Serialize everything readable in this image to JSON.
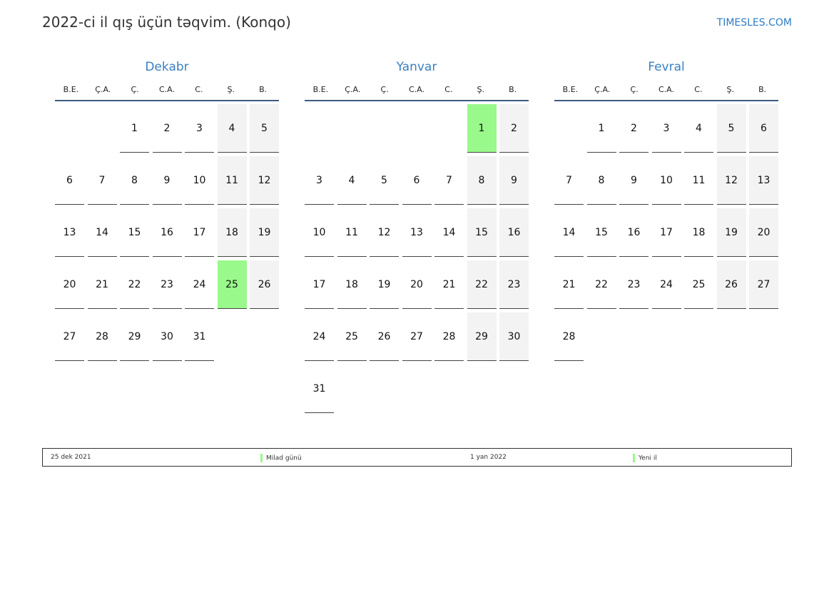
{
  "header": {
    "title": "2022-ci il qış üçün təqvim. (Konqo)",
    "brand": "TIMESLES.COM"
  },
  "weekdays": [
    "B.E.",
    "Ç.A.",
    "Ç.",
    "C.A.",
    "C.",
    "Ş.",
    "B."
  ],
  "colors": {
    "holiday": "#99f98a",
    "weekend": "#f3f3f3",
    "month_title": "#3a7fc0"
  },
  "months": [
    {
      "name": "Dekabr",
      "start_weekday": 2,
      "days": 31,
      "holidays": [
        25
      ]
    },
    {
      "name": "Yanvar",
      "start_weekday": 5,
      "days": 31,
      "holidays": [
        1
      ]
    },
    {
      "name": "Fevral",
      "start_weekday": 1,
      "days": 28,
      "holidays": []
    }
  ],
  "legend": [
    {
      "date": "25 dek 2021",
      "name": "Milad günü"
    },
    {
      "date": "1 yan 2022",
      "name": "Yeni il"
    }
  ]
}
